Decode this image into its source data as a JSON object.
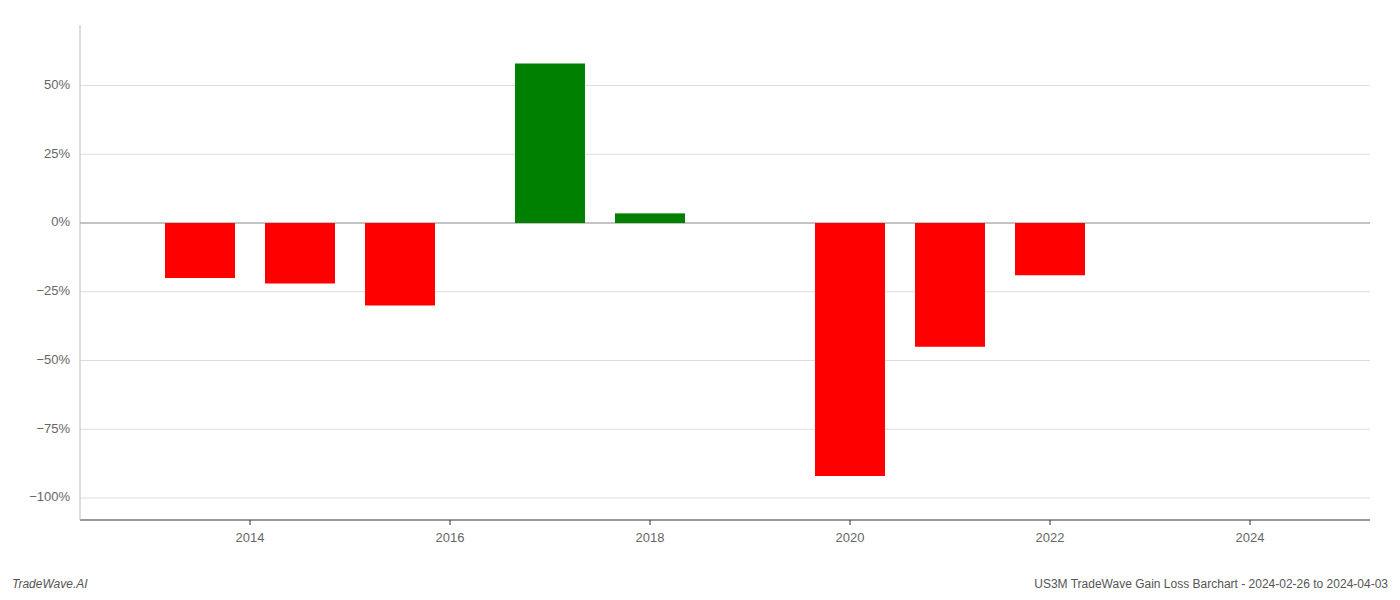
{
  "chart_data": {
    "type": "bar",
    "x": [
      2013.5,
      2014.5,
      2015.5,
      2017.0,
      2018.0,
      2020.0,
      2021.0,
      2022.0
    ],
    "values": [
      -20.0,
      -22.0,
      -30.0,
      58.0,
      3.5,
      -92.0,
      -45.0,
      -19.0
    ],
    "colors": [
      "#ff0000",
      "#ff0000",
      "#ff0000",
      "#008000",
      "#008000",
      "#ff0000",
      "#ff0000",
      "#ff0000"
    ],
    "xlim": [
      2012.3,
      2025.2
    ],
    "xticks": [
      2014,
      2016,
      2018,
      2020,
      2022,
      2024
    ],
    "ylim": [
      -108,
      72
    ],
    "yticks": [
      {
        "value": -100,
        "label": "−100%"
      },
      {
        "value": -75,
        "label": "−75%"
      },
      {
        "value": -50,
        "label": "−50%"
      },
      {
        "value": -25,
        "label": "−25%"
      },
      {
        "value": 0,
        "label": "0%"
      },
      {
        "value": 25,
        "label": "25%"
      },
      {
        "value": 50,
        "label": "50%"
      }
    ],
    "grid": true,
    "annotations": [
      "TradeWave.AI",
      "US3M TradeWave Gain Loss Barchart - 2024-02-26 to 2024-04-03"
    ]
  }
}
